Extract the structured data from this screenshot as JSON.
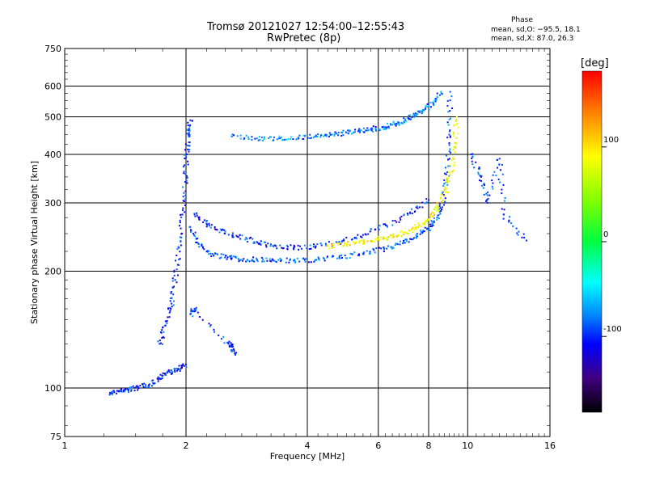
{
  "chart_data": {
    "type": "scatter",
    "title": "Tromsø 20121027 12:54:00–12:55:43",
    "subtitle": "RwPretec (8p)",
    "xlabel": "Frequency [MHz]",
    "ylabel": "Stationary phase Virtual Height [km]",
    "xscale": "log2",
    "yscale": "log",
    "xlim": [
      1,
      16
    ],
    "ylim": [
      75,
      750
    ],
    "xticks": [
      1,
      2,
      4,
      6,
      8,
      10,
      16
    ],
    "yticks": [
      75,
      100,
      200,
      300,
      400,
      500,
      600,
      750
    ],
    "grid": true,
    "colorbar": {
      "label": "[deg]",
      "range": [
        -180,
        180
      ],
      "ticks": [
        100,
        0,
        -100
      ]
    },
    "phase_stats": {
      "title": "Phase",
      "o_line": "mean, sd,O: −95.5, 18.1",
      "x_line": "mean, sd,X: 87.0, 26.3"
    },
    "series": [
      {
        "trace": "low-rise",
        "x": [
          1.3,
          1.36,
          1.44,
          1.52,
          1.62,
          1.72,
          1.82,
          1.92,
          2.0
        ],
        "y": [
          97,
          98,
          99,
          100,
          102,
          106,
          110,
          112,
          115
        ],
        "phase": -100
      },
      {
        "trace": "o-mode-cusp",
        "x": [
          1.72,
          1.78,
          1.84,
          1.88,
          1.92,
          1.96,
          1.99,
          2.01,
          2.03,
          2.05
        ],
        "y": [
          130,
          145,
          165,
          190,
          230,
          280,
          340,
          400,
          450,
          490
        ],
        "phase": -100
      },
      {
        "trace": "mid-branch",
        "x": [
          2.1,
          2.25,
          2.45,
          2.7,
          3.0,
          3.3,
          3.7,
          4.2,
          4.8,
          5.5,
          6.3,
          7.2,
          8.0
        ],
        "y": [
          280,
          265,
          255,
          245,
          238,
          232,
          230,
          232,
          238,
          248,
          262,
          282,
          305
        ],
        "phase": -100
      },
      {
        "trace": "F-layer-o",
        "x": [
          2.05,
          2.15,
          2.3,
          2.5,
          2.7,
          3.0,
          3.3,
          3.7,
          4.2,
          4.8,
          5.5,
          6.2,
          6.9,
          7.5,
          8.0,
          8.4,
          8.7,
          8.9,
          9.0,
          9.05
        ],
        "y": [
          260,
          235,
          222,
          217,
          215,
          214,
          213,
          213,
          214,
          217,
          222,
          228,
          236,
          246,
          258,
          275,
          305,
          360,
          450,
          580
        ],
        "phase": -90
      },
      {
        "trace": "F-layer-x",
        "x": [
          4.5,
          5.0,
          5.5,
          6.0,
          6.5,
          7.0,
          7.5,
          8.0,
          8.4,
          8.8,
          9.1,
          9.3,
          9.4
        ],
        "y": [
          232,
          235,
          238,
          242,
          246,
          252,
          260,
          272,
          290,
          320,
          360,
          420,
          500
        ],
        "phase": 90
      },
      {
        "trace": "upper-trace",
        "x": [
          2.6,
          3.0,
          3.4,
          3.8,
          4.2,
          4.6,
          5.0,
          5.4,
          5.8,
          6.2,
          6.6,
          7.0,
          7.4,
          7.8,
          8.2,
          8.6
        ],
        "y": [
          445,
          440,
          440,
          442,
          445,
          450,
          455,
          460,
          465,
          470,
          478,
          490,
          505,
          520,
          545,
          575
        ],
        "phase": -80
      },
      {
        "trace": "echo-cluster-2.5",
        "x": [
          2.05,
          2.1,
          2.55,
          2.6,
          2.65
        ],
        "y": [
          155,
          160,
          130,
          128,
          122
        ],
        "phase": -100
      },
      {
        "trace": "high-freq-scatter",
        "x": [
          10.2,
          10.8,
          11.2,
          12.0,
          12.3,
          14.0
        ],
        "y": [
          400,
          350,
          300,
          390,
          280,
          240
        ],
        "phase": -100
      }
    ]
  }
}
